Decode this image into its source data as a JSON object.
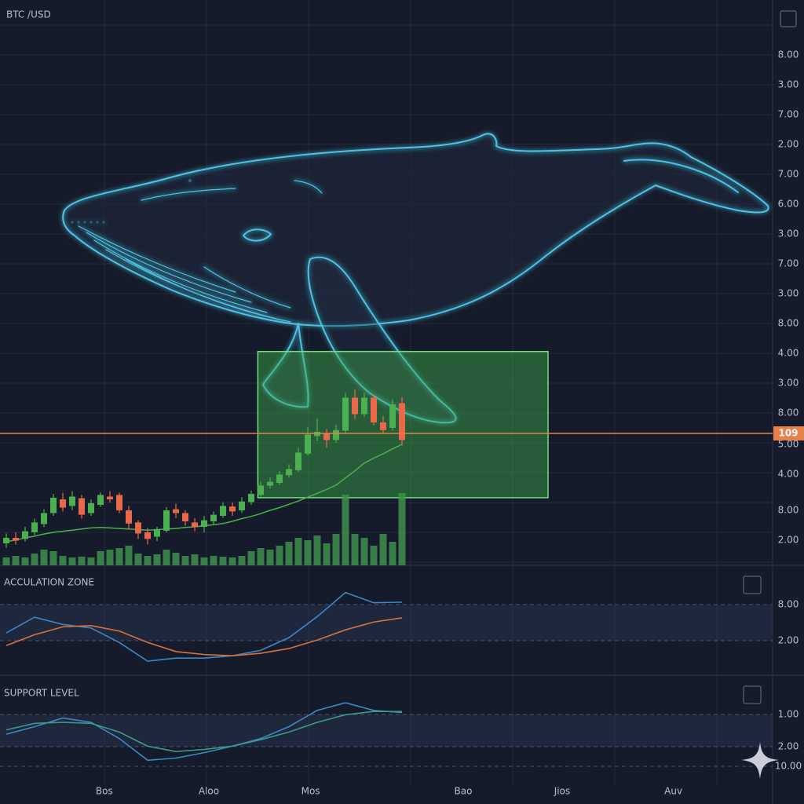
{
  "chart_data": [
    {
      "type": "candlestick",
      "title": "BTC /USD",
      "xlim": [
        -0.667,
        81.333
      ],
      "ylim": [
        0,
        100
      ],
      "xticks": [
        {
          "value": 10.4,
          "label": "Bos"
        },
        {
          "value": 21.5,
          "label": "Aloo"
        },
        {
          "value": 32.3,
          "label": "Mos"
        },
        {
          "value": 48.5,
          "label": "Bao"
        },
        {
          "value": 59,
          "label": "Jios"
        },
        {
          "value": 70.8,
          "label": "Auv"
        }
      ],
      "axis_labels": [
        "8.00",
        "3.00",
        "7.00",
        "2.00",
        "7.00",
        "6.00",
        "3.00",
        "7.00",
        "3.00",
        "8.00",
        "4.00",
        "3.00",
        "8.00",
        "5.00",
        "4.00",
        "8.00",
        "2.00"
      ],
      "up_color": "#4caf50",
      "down_color": "#e8694a",
      "ma_color": "#4caf50",
      "volume_color": "#3f8f4e",
      "open": [
        4.0,
        5.0,
        4.8,
        6.0,
        7.5,
        9.5,
        12.0,
        10.8,
        12.2,
        9.5,
        11.0,
        12.5,
        12.8,
        10.0,
        7.8,
        6.0,
        5.2,
        6.3,
        10.2,
        9.5,
        7.8,
        7.0,
        8.0,
        9.0,
        10.7,
        10.0,
        11.5,
        12.8,
        14.5,
        15.0,
        16.4,
        17.3,
        20.3,
        23.5,
        24.0,
        22.8,
        24.5,
        30.5,
        27.5,
        30.5,
        26.0,
        25.0,
        29.5
      ],
      "high": [
        5.8,
        6.0,
        7.0,
        8.5,
        10.2,
        13.0,
        13.2,
        13.5,
        12.8,
        12.0,
        13.3,
        13.5,
        13.2,
        10.8,
        8.2,
        6.8,
        7.0,
        10.6,
        11.2,
        10.0,
        8.6,
        9.0,
        9.8,
        11.5,
        11.4,
        12.4,
        13.6,
        15.2,
        16.0,
        17.2,
        18.4,
        21.4,
        25.2,
        26.7,
        24.8,
        25.6,
        31.4,
        32.0,
        31.4,
        31.0,
        27.2,
        30.2,
        30.6
      ],
      "low": [
        3.2,
        3.8,
        4.3,
        5.5,
        7.0,
        9.0,
        9.8,
        10.0,
        8.5,
        9.0,
        10.6,
        11.4,
        9.5,
        6.5,
        4.8,
        3.8,
        4.4,
        6.0,
        8.6,
        7.2,
        6.2,
        6.0,
        7.5,
        8.6,
        9.0,
        9.5,
        11.0,
        12.5,
        14.0,
        14.6,
        16.0,
        17.0,
        20.0,
        22.6,
        21.4,
        22.3,
        24.0,
        26.6,
        27.0,
        25.5,
        23.8,
        24.5,
        21.8
      ],
      "close": [
        5.0,
        4.5,
        6.2,
        7.8,
        9.5,
        12.3,
        10.5,
        12.5,
        9.2,
        11.3,
        12.8,
        12.0,
        10.0,
        7.6,
        5.8,
        4.8,
        6.5,
        10.0,
        9.5,
        8.0,
        7.0,
        8.2,
        9.2,
        10.8,
        9.8,
        11.6,
        13.0,
        14.5,
        15.2,
        16.5,
        17.5,
        20.5,
        23.8,
        24.3,
        22.8,
        24.6,
        30.5,
        27.5,
        30.5,
        26.0,
        24.6,
        29.3,
        22.8
      ],
      "ma": [
        4.3,
        4.6,
        5.0,
        5.3,
        5.7,
        6.0,
        6.2,
        6.4,
        6.6,
        6.8,
        6.9,
        6.8,
        6.7,
        6.6,
        6.5,
        6.4,
        6.5,
        6.6,
        6.7,
        6.9,
        7.0,
        7.2,
        7.4,
        7.6,
        8.0,
        8.5,
        8.9,
        9.4,
        10.0,
        10.5,
        11.1,
        11.7,
        12.4,
        13.1,
        13.8,
        14.6,
        15.9,
        17.2,
        18.6,
        19.5,
        20.3,
        21.2,
        22.0
      ],
      "volume": [
        10,
        12,
        10,
        15,
        20,
        18,
        12,
        10,
        11,
        10,
        18,
        20,
        22,
        25,
        15,
        12,
        14,
        20,
        16,
        12,
        14,
        10,
        12,
        11,
        10,
        12,
        18,
        22,
        20,
        25,
        30,
        35,
        32,
        38,
        28,
        40,
        90,
        40,
        35,
        25,
        40,
        30,
        92
      ],
      "zone": {
        "x": [
          26.7,
          57.5
        ],
        "y": [
          12.3,
          38.9
        ],
        "color": "#3fae4a"
      },
      "price_line": 24.0,
      "price_label": "109",
      "price_color": "#e8804a"
    },
    {
      "type": "line",
      "title": "ACCULATION ZONE",
      "x": [
        0,
        3,
        6,
        9,
        12,
        15,
        18,
        21,
        24,
        27,
        30,
        33,
        36,
        39,
        42
      ],
      "ylim": [
        -3.74,
        14.26
      ],
      "yticks": [
        {
          "value": 8,
          "label": "8.00"
        },
        {
          "value": 2,
          "label": "2.00"
        }
      ],
      "series": [
        {
          "color": "#3f86c6",
          "values": [
            3.3,
            5.9,
            4.7,
            4.1,
            1.7,
            -1.4,
            -0.9,
            -0.9,
            -0.5,
            0.4,
            2.5,
            6.0,
            10.0,
            8.3,
            8.4
          ]
        },
        {
          "color": "#d9713f",
          "values": [
            1.2,
            3.0,
            4.3,
            4.5,
            3.6,
            1.7,
            0.2,
            -0.3,
            -0.5,
            -0.1,
            0.7,
            2.1,
            3.8,
            5.1,
            5.8
          ]
        }
      ]
    },
    {
      "type": "line",
      "title": "SUPPORT LEVEL",
      "x": [
        0,
        3,
        6,
        9,
        12,
        15,
        18,
        21,
        24,
        27,
        30,
        33,
        36,
        39,
        42
      ],
      "ylim": [
        0,
        100
      ],
      "axis_labels": [
        "1.00",
        "2.00",
        "10.00"
      ],
      "series": [
        {
          "color": "#3f86c6",
          "values": [
            47,
            54,
            62,
            58,
            43,
            23,
            25,
            30,
            36,
            43,
            54,
            69,
            76,
            69,
            67
          ]
        },
        {
          "color": "#3a9a8a",
          "values": [
            51,
            57,
            58,
            57,
            49,
            36,
            31,
            33,
            36,
            42,
            49,
            58,
            65,
            68,
            68
          ]
        }
      ]
    }
  ]
}
